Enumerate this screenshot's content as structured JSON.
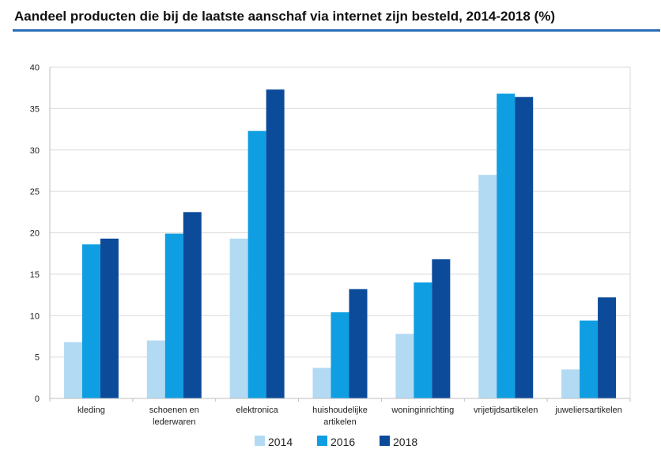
{
  "chart_data": {
    "type": "bar",
    "title": "Aandeel producten die bij de laatste aanschaf via internet zijn besteld, 2014-2018 (%)",
    "xlabel": "",
    "ylabel": "",
    "ylim": [
      0,
      40
    ],
    "yticks": [
      "0",
      "5",
      "10",
      "15",
      "20",
      "25",
      "30",
      "35",
      "40"
    ],
    "grid": true,
    "legend_position": "bottom-center",
    "categories": [
      [
        "kleding"
      ],
      [
        "schoenen en",
        "lederwaren"
      ],
      [
        "elektronica"
      ],
      [
        "huishoudelijke",
        "artikelen"
      ],
      [
        "woninginrichting"
      ],
      [
        "vrijetijdsartikelen"
      ],
      [
        "juweliersartikelen"
      ]
    ],
    "series": [
      {
        "name": "2014",
        "color": "#b3daf3",
        "values": [
          6.8,
          7.0,
          19.3,
          3.7,
          7.8,
          27.0,
          3.5
        ]
      },
      {
        "name": "2016",
        "color": "#0e9ee1",
        "values": [
          18.6,
          19.9,
          32.3,
          10.4,
          14.0,
          36.8,
          9.4
        ]
      },
      {
        "name": "2018",
        "color": "#0c4a9a",
        "values": [
          19.3,
          22.5,
          37.3,
          13.2,
          16.8,
          36.4,
          12.2
        ]
      }
    ]
  }
}
